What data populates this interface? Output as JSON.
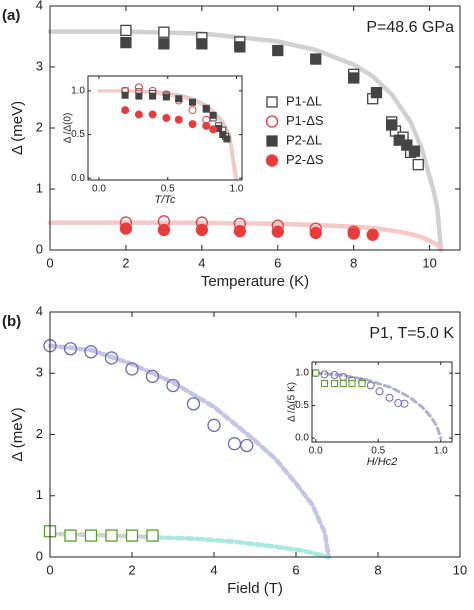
{
  "chart_data": [
    {
      "type": "scatter",
      "panel_label": "(a)",
      "annotation": "P=48.6 GPa",
      "x_label": "Temperature (K)",
      "y_label": "Δ (meV)",
      "xlim": [
        0,
        10.8
      ],
      "ylim": [
        0,
        4
      ],
      "xticks": [
        0,
        2,
        4,
        6,
        8,
        10
      ],
      "yticks": [
        0,
        1,
        2,
        3,
        4
      ],
      "legend": true,
      "series": [
        {
          "style": "line",
          "color": "#d0d0d0",
          "x": [
            0,
            2,
            4,
            6,
            7,
            8,
            8.5,
            9,
            9.5,
            9.8,
            10,
            10.1,
            10.2,
            10.3
          ],
          "values": [
            3.58,
            3.58,
            3.55,
            3.42,
            3.28,
            3.04,
            2.85,
            2.55,
            2.1,
            1.65,
            1.2,
            0.98,
            0.7,
            0
          ]
        },
        {
          "style": "line",
          "color": "#f6c8c8",
          "x": [
            0,
            2,
            4,
            6,
            7,
            8,
            8.5,
            9,
            9.5,
            9.8,
            10,
            10.1,
            10.2,
            10.3
          ],
          "values": [
            0.45,
            0.45,
            0.446,
            0.43,
            0.41,
            0.38,
            0.36,
            0.32,
            0.26,
            0.21,
            0.15,
            0.12,
            0.09,
            0
          ]
        },
        {
          "name": "P1-ΔL",
          "marker": "square-open",
          "color": "#444444",
          "x": [
            2,
            3,
            4,
            5,
            8,
            8.5,
            9,
            9.1,
            9.3,
            9.5,
            9.7
          ],
          "values": [
            3.6,
            3.57,
            3.48,
            3.41,
            2.88,
            2.48,
            2.1,
            1.95,
            1.85,
            1.6,
            1.4
          ]
        },
        {
          "name": "P1-ΔS",
          "marker": "circle-open",
          "color": "#e83c3c",
          "x": [
            2,
            3,
            4,
            5,
            6,
            7,
            8
          ],
          "values": [
            0.45,
            0.47,
            0.45,
            0.43,
            0.4,
            0.35,
            0.3
          ]
        },
        {
          "name": "P2-ΔL",
          "marker": "square-filled",
          "color": "#444444",
          "x": [
            2,
            3,
            4,
            5,
            6,
            7,
            8,
            8.6,
            9,
            9.2,
            9.4,
            9.6
          ],
          "values": [
            3.4,
            3.38,
            3.38,
            3.33,
            3.27,
            3.13,
            2.82,
            2.58,
            2.05,
            1.8,
            1.72,
            1.62
          ]
        },
        {
          "name": "P2-ΔS",
          "marker": "circle-filled",
          "color": "#e83c3c",
          "x": [
            2,
            3,
            4,
            5,
            6,
            7,
            8,
            8.5
          ],
          "values": [
            0.35,
            0.33,
            0.33,
            0.31,
            0.3,
            0.28,
            0.27,
            0.25
          ]
        }
      ]
    },
    {
      "type": "scatter",
      "x_label": "T/Tc",
      "y_label": "Δ /Δ(0)",
      "xlim": [
        -0.08,
        1.04
      ],
      "ylim": [
        -0.02,
        1.17
      ],
      "xticks": [
        {
          "value": 0,
          "label": "0.0"
        },
        {
          "value": 0.5,
          "label": "0.5"
        },
        {
          "value": 1,
          "label": "1.0"
        }
      ],
      "yticks": [
        {
          "value": 0,
          "label": "0.0"
        },
        {
          "value": 0.5,
          "label": "0.5"
        },
        {
          "value": 1,
          "label": "1.0"
        }
      ],
      "series": [
        {
          "style": "line",
          "color": "#d0d0d0",
          "x": [
            0,
            0.2,
            0.4,
            0.6,
            0.7,
            0.8,
            0.9,
            0.95,
            1.0
          ],
          "values": [
            1,
            1,
            0.99,
            0.95,
            0.9,
            0.82,
            0.65,
            0.5,
            0
          ]
        },
        {
          "style": "line",
          "color": "#f6c8c8",
          "x": [
            0,
            0.2,
            0.4,
            0.6,
            0.7,
            0.8,
            0.9,
            0.95,
            0.99
          ],
          "values": [
            1,
            1,
            0.98,
            0.93,
            0.88,
            0.8,
            0.62,
            0.45,
            0
          ]
        },
        {
          "marker": "square-open",
          "color": "#444444",
          "x": [
            0.19,
            0.29,
            0.39,
            0.49,
            0.78,
            0.83,
            0.87,
            0.9,
            0.92
          ],
          "values": [
            1.0,
            0.99,
            0.97,
            0.95,
            0.8,
            0.69,
            0.6,
            0.55,
            0.48
          ]
        },
        {
          "marker": "circle-open",
          "color": "#e83c3c",
          "x": [
            0.19,
            0.29,
            0.39,
            0.49,
            0.58,
            0.68,
            0.78
          ],
          "values": [
            1.0,
            1.04,
            1.0,
            0.96,
            0.89,
            0.78,
            0.67
          ]
        },
        {
          "marker": "square-filled",
          "color": "#444444",
          "x": [
            0.19,
            0.29,
            0.39,
            0.49,
            0.58,
            0.68,
            0.78,
            0.83,
            0.87,
            0.9,
            0.93
          ],
          "values": [
            0.95,
            0.94,
            0.94,
            0.93,
            0.91,
            0.87,
            0.79,
            0.72,
            0.57,
            0.5,
            0.45
          ]
        },
        {
          "marker": "circle-filled",
          "color": "#e83c3c",
          "x": [
            0.19,
            0.29,
            0.39,
            0.49,
            0.58,
            0.68,
            0.78,
            0.83
          ],
          "values": [
            0.78,
            0.73,
            0.73,
            0.69,
            0.67,
            0.62,
            0.6,
            0.56
          ]
        }
      ]
    },
    {
      "type": "scatter",
      "panel_label": "(b)",
      "annotation": "P1, T=5.0 K",
      "x_label": "Field (T)",
      "y_label": "Δ (meV)",
      "xlim": [
        0,
        10
      ],
      "ylim": [
        0,
        4
      ],
      "xticks": [
        0,
        2,
        4,
        6,
        8,
        10
      ],
      "yticks": [
        0,
        1,
        2,
        3,
        4
      ],
      "series": [
        {
          "style": "dashed",
          "color": "#c4c4e4",
          "x": [
            0,
            1,
            2,
            3,
            4,
            5,
            5.5,
            6,
            6.4,
            6.7,
            6.8
          ],
          "values": [
            3.45,
            3.38,
            3.15,
            2.85,
            2.45,
            1.9,
            1.6,
            1.2,
            0.85,
            0.4,
            0
          ]
        },
        {
          "style": "dashed",
          "color": "#d0d0d0",
          "x": [
            0,
            1,
            2,
            2.6
          ],
          "values": [
            0.38,
            0.36,
            0.34,
            0.32
          ]
        },
        {
          "style": "dashed",
          "color": "#a8e8e0",
          "x": [
            2.6,
            3.5,
            4.5,
            5.5,
            6.2,
            6.8
          ],
          "values": [
            0.32,
            0.3,
            0.25,
            0.17,
            0.1,
            0
          ]
        },
        {
          "marker": "circle-open",
          "color": "#6a6ab8",
          "x": [
            0,
            0.5,
            1,
            1.5,
            2,
            2.5,
            3,
            3.5,
            4,
            4.5,
            4.8
          ],
          "values": [
            3.45,
            3.4,
            3.35,
            3.25,
            3.07,
            2.95,
            2.8,
            2.5,
            2.15,
            1.85,
            1.82
          ]
        },
        {
          "marker": "square-open",
          "color": "#5a9e2a",
          "x": [
            0,
            0.5,
            1,
            1.5,
            2,
            2.5
          ],
          "values": [
            0.42,
            0.35,
            0.35,
            0.35,
            0.35,
            0.35
          ]
        }
      ]
    },
    {
      "type": "scatter",
      "x_label": "H/Hc2",
      "y_label": "Δ /Δ(5 K)",
      "xlim": [
        -0.03,
        1.09
      ],
      "ylim": [
        -0.06,
        1.17
      ],
      "xticks": [
        {
          "value": 0,
          "label": "0.0"
        },
        {
          "value": 0.5,
          "label": "0.5"
        },
        {
          "value": 1,
          "label": "1.0"
        }
      ],
      "yticks": [
        {
          "value": 0,
          "label": "0.0"
        },
        {
          "value": 0.5,
          "label": "0.5"
        },
        {
          "value": 1,
          "label": "1.0"
        }
      ],
      "series": [
        {
          "style": "dashed",
          "color": "#b0b0c8",
          "x": [
            0,
            0.2,
            0.4,
            0.6,
            0.75,
            0.85,
            0.92,
            0.97,
            1.0
          ],
          "values": [
            1,
            0.97,
            0.9,
            0.78,
            0.63,
            0.48,
            0.33,
            0.18,
            0
          ]
        },
        {
          "marker": "circle-open",
          "color": "#6a6ab8",
          "x": [
            0,
            0.07,
            0.15,
            0.22,
            0.29,
            0.37,
            0.44,
            0.51,
            0.59,
            0.66,
            0.71
          ],
          "values": [
            1.0,
            0.98,
            0.97,
            0.94,
            0.89,
            0.86,
            0.81,
            0.72,
            0.62,
            0.54,
            0.53
          ]
        },
        {
          "marker": "square-open",
          "color": "#5a9e2a",
          "x": [
            0,
            0.07,
            0.15,
            0.22,
            0.29,
            0.37
          ],
          "values": [
            1.0,
            0.84,
            0.84,
            0.84,
            0.84,
            0.84
          ]
        }
      ]
    }
  ]
}
